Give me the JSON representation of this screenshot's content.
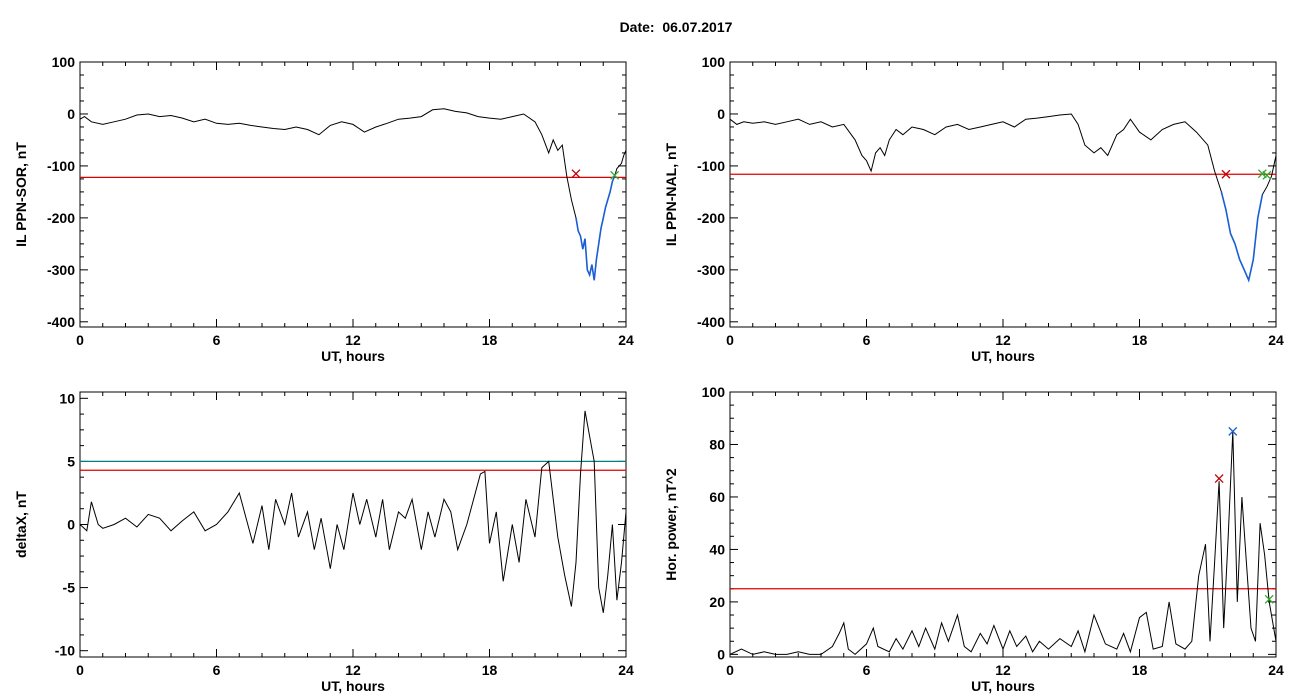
{
  "page": {
    "title": "Date:  06.07.2017"
  },
  "colors": {
    "axis": "#000000",
    "trace": "#000000",
    "red_threshold": "#e00000",
    "teal_threshold": "#008080",
    "blue_highlight": "#1a5fd6",
    "green_marker": "#2eaa2e",
    "red_marker": "#c00000",
    "blue_marker": "#1a5fd6"
  },
  "chart_data": [
    {
      "id": "p1",
      "type": "line",
      "xlabel": "UT, hours",
      "ylabel": "IL PPN-SOR, nT",
      "xlim": [
        0,
        24
      ],
      "ylim": [
        -410,
        100
      ],
      "xticks": [
        0,
        6,
        12,
        18,
        24
      ],
      "yticks": [
        100,
        0,
        -100,
        -200,
        -300,
        -400
      ],
      "series": [
        {
          "x": [
            0,
            0.2,
            0.5,
            1,
            1.5,
            2,
            2.5,
            3,
            3.5,
            4,
            4.5,
            5,
            5.5,
            6,
            6.5,
            7,
            7.5,
            8,
            8.5,
            9,
            9.5,
            10,
            10.5,
            11,
            11.5,
            12,
            12.5,
            13,
            13.5,
            14,
            14.5,
            15,
            15.5,
            16,
            16.5,
            17,
            17.5,
            18,
            18.5,
            19,
            19.5,
            20,
            20.3,
            20.6,
            20.8,
            21,
            21.2,
            21.4,
            21.6,
            21.8,
            21.9,
            22,
            22.1,
            22.2,
            22.3,
            22.4,
            22.5,
            22.6,
            22.7,
            22.8,
            22.9,
            23,
            23.1,
            23.2,
            23.3,
            23.4,
            23.5,
            23.6,
            23.7,
            23.8,
            23.9,
            24
          ],
          "y": [
            -10,
            -5,
            -15,
            -20,
            -15,
            -10,
            -2,
            0,
            -5,
            -3,
            -8,
            -15,
            -10,
            -18,
            -20,
            -18,
            -22,
            -25,
            -28,
            -30,
            -25,
            -30,
            -40,
            -22,
            -15,
            -20,
            -35,
            -25,
            -18,
            -10,
            -8,
            -5,
            8,
            10,
            5,
            2,
            -5,
            -8,
            -10,
            -5,
            0,
            -15,
            -40,
            -75,
            -50,
            -70,
            -60,
            -120,
            -165,
            -200,
            -225,
            -235,
            -260,
            -240,
            -300,
            -310,
            -290,
            -320,
            -280,
            -250,
            -220,
            -200,
            -180,
            -165,
            -150,
            -130,
            -120,
            -105,
            -100,
            -95,
            -80,
            -70
          ]
        }
      ],
      "highlight": {
        "x_from": 21.8,
        "x_to": 23.5
      },
      "hlines": [
        {
          "y": -122,
          "color": "red"
        }
      ],
      "markers": [
        {
          "x": 21.8,
          "y": -115,
          "color": "red"
        },
        {
          "x": 23.5,
          "y": -118,
          "color": "green"
        }
      ]
    },
    {
      "id": "p2",
      "type": "line",
      "xlabel": "UT, hours",
      "ylabel": "IL PPN-NAL, nT",
      "xlim": [
        0,
        24
      ],
      "ylim": [
        -410,
        100
      ],
      "xticks": [
        0,
        6,
        12,
        18,
        24
      ],
      "yticks": [
        100,
        0,
        -100,
        -200,
        -300,
        -400
      ],
      "series": [
        {
          "x": [
            0,
            0.3,
            0.6,
            1,
            1.5,
            2,
            2.5,
            3,
            3.5,
            4,
            4.5,
            5,
            5.5,
            5.8,
            6,
            6.2,
            6.4,
            6.6,
            6.8,
            7,
            7.3,
            7.6,
            8,
            8.5,
            9,
            9.5,
            10,
            10.5,
            11,
            11.5,
            12,
            12.5,
            13,
            13.5,
            14,
            14.5,
            15,
            15.3,
            15.6,
            16,
            16.3,
            16.6,
            17,
            17.3,
            17.6,
            18,
            18.5,
            19,
            19.5,
            20,
            20.5,
            21,
            21.3,
            21.6,
            21.8,
            22,
            22.2,
            22.4,
            22.6,
            22.8,
            23,
            23.2,
            23.4,
            23.6,
            23.8,
            24
          ],
          "y": [
            -10,
            -20,
            -15,
            -18,
            -15,
            -20,
            -15,
            -10,
            -20,
            -15,
            -25,
            -20,
            -50,
            -80,
            -90,
            -110,
            -75,
            -65,
            -80,
            -50,
            -30,
            -40,
            -25,
            -30,
            -40,
            -25,
            -20,
            -30,
            -25,
            -20,
            -15,
            -25,
            -10,
            -8,
            -5,
            -2,
            0,
            -20,
            -60,
            -75,
            -65,
            -80,
            -40,
            -30,
            -10,
            -35,
            -50,
            -30,
            -20,
            -15,
            -35,
            -60,
            -110,
            -150,
            -185,
            -230,
            -250,
            -280,
            -300,
            -320,
            -280,
            -200,
            -155,
            -140,
            -120,
            -80
          ]
        }
      ],
      "highlight": {
        "x_from": 21.6,
        "x_to": 23.4
      },
      "hlines": [
        {
          "y": -116,
          "color": "red"
        }
      ],
      "markers": [
        {
          "x": 21.8,
          "y": -116,
          "color": "red"
        },
        {
          "x": 23.4,
          "y": -115,
          "color": "green"
        },
        {
          "x": 23.6,
          "y": -118,
          "color": "green"
        }
      ]
    },
    {
      "id": "p3",
      "type": "line",
      "xlabel": "UT, hours",
      "ylabel": "deltaX, nT",
      "xlim": [
        0,
        24
      ],
      "ylim": [
        -10.5,
        10.5
      ],
      "xticks": [
        0,
        6,
        12,
        18,
        24
      ],
      "yticks": [
        10,
        5,
        0,
        -5,
        -10
      ],
      "series": [
        {
          "x": [
            0,
            0.3,
            0.5,
            0.8,
            1,
            1.5,
            2,
            2.5,
            3,
            3.5,
            4,
            4.5,
            5,
            5.5,
            6,
            6.5,
            7,
            7.3,
            7.6,
            8,
            8.3,
            8.6,
            9,
            9.3,
            9.6,
            10,
            10.3,
            10.6,
            11,
            11.3,
            11.6,
            12,
            12.3,
            12.6,
            13,
            13.3,
            13.6,
            14,
            14.3,
            14.6,
            15,
            15.3,
            15.6,
            16,
            16.3,
            16.6,
            17,
            17.3,
            17.6,
            17.8,
            18,
            18.3,
            18.6,
            19,
            19.3,
            19.6,
            20,
            20.3,
            20.6,
            21,
            21.3,
            21.6,
            21.8,
            22,
            22.2,
            22.4,
            22.6,
            22.8,
            23,
            23.2,
            23.4,
            23.6,
            23.8,
            24
          ],
          "y": [
            0,
            -0.5,
            1.8,
            0,
            -0.3,
            0,
            0.5,
            -0.2,
            0.8,
            0.5,
            -0.5,
            0.3,
            1,
            -0.5,
            0,
            1,
            2.5,
            0.5,
            -1.5,
            1.5,
            -2,
            2,
            0,
            2.5,
            -1,
            1,
            -2,
            0.5,
            -3.5,
            0,
            -2,
            2.5,
            0,
            2,
            -1,
            2,
            -2,
            1,
            0.5,
            2,
            -2,
            1,
            -1,
            2,
            1,
            -2,
            0,
            2,
            4,
            4.2,
            -1.5,
            1,
            -4.5,
            0,
            -3,
            2,
            -1,
            4.5,
            5,
            -1,
            -4,
            -6.5,
            -3,
            4,
            9,
            7,
            5,
            -5,
            -7,
            -4,
            0,
            -6,
            -3,
            1
          ]
        }
      ],
      "hlines": [
        {
          "y": 5.0,
          "color": "teal"
        },
        {
          "y": 4.3,
          "color": "red"
        }
      ],
      "markers": []
    },
    {
      "id": "p4",
      "type": "line",
      "xlabel": "UT, hours",
      "ylabel": "Hor. power, nT^2",
      "xlim": [
        0,
        24
      ],
      "ylim": [
        -1,
        100
      ],
      "xticks": [
        0,
        6,
        12,
        18,
        24
      ],
      "yticks": [
        100,
        80,
        60,
        40,
        20,
        0
      ],
      "series": [
        {
          "x": [
            0,
            0.5,
            1,
            1.5,
            2,
            2.5,
            3,
            3.5,
            4,
            4.5,
            4.8,
            5,
            5.2,
            5.5,
            6,
            6.3,
            6.5,
            7,
            7.3,
            7.6,
            8,
            8.3,
            8.6,
            9,
            9.3,
            9.6,
            10,
            10.3,
            10.6,
            11,
            11.3,
            11.6,
            12,
            12.3,
            12.6,
            13,
            13.3,
            13.6,
            14,
            14.5,
            15,
            15.3,
            15.6,
            16,
            16.5,
            17,
            17.3,
            17.6,
            18,
            18.3,
            18.6,
            19,
            19.3,
            19.6,
            20,
            20.3,
            20.6,
            20.9,
            21.1,
            21.3,
            21.5,
            21.7,
            21.9,
            22.1,
            22.3,
            22.5,
            22.7,
            22.9,
            23.1,
            23.3,
            23.5,
            23.7,
            24
          ],
          "y": [
            0,
            2,
            0,
            1,
            0,
            0,
            1,
            0,
            0,
            3,
            8,
            12,
            2,
            0,
            4,
            10,
            3,
            1,
            6,
            2,
            9,
            3,
            10,
            2,
            12,
            5,
            15,
            3,
            1,
            8,
            4,
            11,
            2,
            9,
            3,
            7,
            1,
            5,
            2,
            6,
            3,
            9,
            1,
            15,
            4,
            2,
            8,
            1,
            14,
            16,
            2,
            3,
            20,
            4,
            2,
            5,
            30,
            42,
            5,
            35,
            66,
            10,
            45,
            85,
            20,
            60,
            35,
            10,
            5,
            50,
            38,
            20,
            5
          ]
        }
      ],
      "hlines": [
        {
          "y": 25,
          "color": "red"
        }
      ],
      "markers": [
        {
          "x": 21.5,
          "y": 67,
          "color": "red"
        },
        {
          "x": 22.1,
          "y": 85,
          "color": "blue"
        },
        {
          "x": 23.7,
          "y": 21,
          "color": "green"
        }
      ]
    }
  ]
}
